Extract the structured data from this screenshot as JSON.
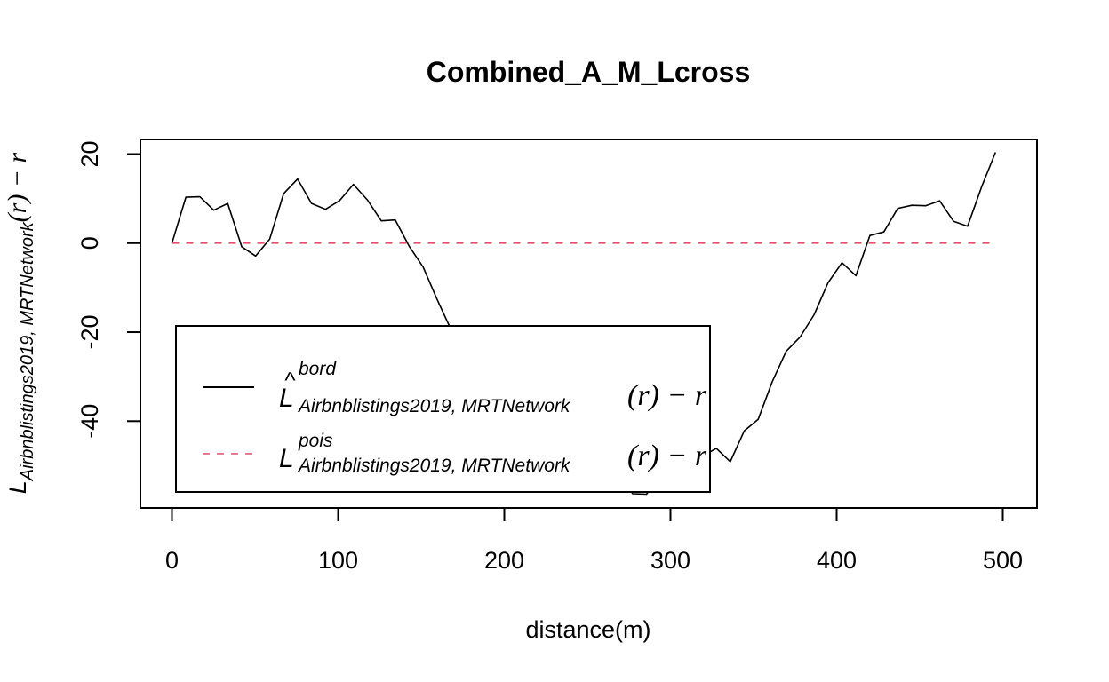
{
  "chart_data": {
    "type": "line",
    "title": "Combined_A_M_Lcross",
    "xlabel": "distance(m)",
    "ylabel": {
      "base": "L",
      "subscript": "Airbnblistings2019, MRTNetwork",
      "tail": "(r) − r"
    },
    "xlim": [
      0,
      500
    ],
    "ylim": [
      -56,
      20
    ],
    "x_ticks": [
      0,
      100,
      200,
      300,
      400,
      500
    ],
    "x_tick_labels": [
      "0",
      "100",
      "200",
      "300",
      "400",
      "500"
    ],
    "y_ticks": [
      20,
      0,
      -20,
      -40
    ],
    "y_tick_labels": [
      "20",
      "0",
      "-20",
      "-40"
    ],
    "grid": false,
    "legend_position": "bottom-left",
    "series": [
      {
        "legend": {
          "base": "L",
          "hat": "^",
          "superscript": "bord",
          "subscript": "Airbnblistings2019, MRTNetwork",
          "tail": "(r) − r"
        },
        "color": "#000000",
        "dash": "solid",
        "x": [
          0,
          8.4,
          16.8,
          25.2,
          33.6,
          42.0,
          50.4,
          58.8,
          67.2,
          75.6,
          84.0,
          92.4,
          100.8,
          109.2,
          117.6,
          126.0,
          134.4,
          142.8,
          151.2,
          159.6,
          168.0,
          176.4,
          184.8,
          193.2,
          201.6,
          210.0,
          218.4,
          226.8,
          235.2,
          243.6,
          252.0,
          260.4,
          268.8,
          277.2,
          285.6,
          294.0,
          302.4,
          310.8,
          319.2,
          327.6,
          336.0,
          344.4,
          352.8,
          361.2,
          369.6,
          378.0,
          386.4,
          394.8,
          403.2,
          411.6,
          420.0,
          428.4,
          436.8,
          445.2,
          453.6,
          462.0,
          470.4,
          478.8,
          487.2,
          495.6
        ],
        "y": [
          0,
          10.3,
          10.4,
          7.4,
          8.9,
          -0.8,
          -2.9,
          0.9,
          11.1,
          14.4,
          8.9,
          7.6,
          9.5,
          13.2,
          9.7,
          5.0,
          5.2,
          -0.7,
          -5.4,
          -12.7,
          -19.5,
          -22.9,
          -24.1,
          -27.8,
          -35.8,
          -33.9,
          -38.9,
          -41.6,
          -46.8,
          -53.3,
          -53.4,
          -53.3,
          -51.2,
          -56.3,
          -56.4,
          -52.2,
          -54.3,
          -52.5,
          -47.9,
          -46.1,
          -49.1,
          -42.2,
          -39.6,
          -31.2,
          -24.3,
          -21.1,
          -16.1,
          -8.9,
          -4.4,
          -7.3,
          1.7,
          2.5,
          7.8,
          8.5,
          8.4,
          9.5,
          4.9,
          3.8,
          12.6,
          20.4
        ]
      },
      {
        "legend": {
          "base": "L",
          "superscript": "pois",
          "subscript": "Airbnblistings2019, MRTNetwork",
          "tail": "(r) − r"
        },
        "color": "#DF536B",
        "dash": "dashed",
        "x": [
          0,
          495.6
        ],
        "y": [
          0,
          0
        ]
      }
    ]
  }
}
